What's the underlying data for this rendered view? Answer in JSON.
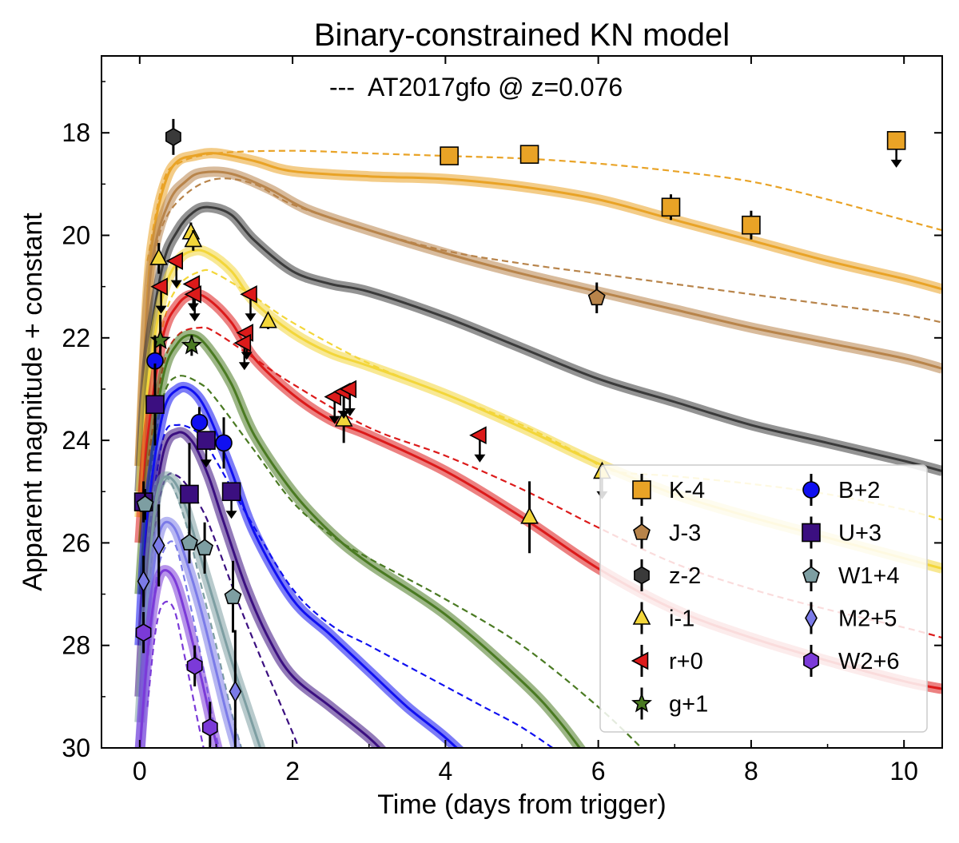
{
  "chart_data": {
    "type": "line",
    "title": "Binary-constrained KN model",
    "xlabel": "Time (days from trigger)",
    "ylabel": "Apparent magnitude + constant",
    "xlim": [
      -0.5,
      10.5
    ],
    "ylim": [
      30,
      16.5
    ],
    "y_inverted": true,
    "grid": false,
    "x_ticks": [
      0,
      2,
      4,
      6,
      8,
      10
    ],
    "y_ticks": [
      18,
      20,
      22,
      24,
      26,
      28,
      30
    ],
    "annotation": {
      "label": "---  AT2017gfo @ z=0.076",
      "line_style": "dashed"
    },
    "legend_position": "lower-right",
    "legend": [
      {
        "label": "K-4",
        "color": "#e9a326",
        "marker": "square"
      },
      {
        "label": "J-3",
        "color": "#b8844a",
        "marker": "pentagon"
      },
      {
        "label": "z-2",
        "color": "#3a3a3a",
        "marker": "hexagon"
      },
      {
        "label": "i-1",
        "color": "#f3d63a",
        "marker": "triangle-up"
      },
      {
        "label": "r+0",
        "color": "#dc1a1a",
        "marker": "triangle-left"
      },
      {
        "label": "g+1",
        "color": "#4a7a22",
        "marker": "star"
      },
      {
        "label": "B+2",
        "color": "#1010f0",
        "marker": "circle"
      },
      {
        "label": "U+3",
        "color": "#3b0f80",
        "marker": "square"
      },
      {
        "label": "W1+4",
        "color": "#7d9ea2",
        "marker": "pentagon"
      },
      {
        "label": "M2+5",
        "color": "#7b7be8",
        "marker": "diamond"
      },
      {
        "label": "W2+6",
        "color": "#7b3ad8",
        "marker": "hexagon"
      }
    ],
    "series": [
      {
        "name": "K-4",
        "color": "#e9a326",
        "model": {
          "x": [
            0,
            0.1,
            0.2,
            0.35,
            0.5,
            0.7,
            1.0,
            1.5,
            2.0,
            3.0,
            4.0,
            5.0,
            6.0,
            7.0,
            8.0,
            9.0,
            10.0,
            10.5
          ],
          "y": [
            24.5,
            21.2,
            19.8,
            18.9,
            18.55,
            18.45,
            18.4,
            18.55,
            18.75,
            18.85,
            18.9,
            19.05,
            19.3,
            19.7,
            20.1,
            20.5,
            20.85,
            21.05
          ]
        },
        "reference": {
          "x": [
            0.1,
            0.3,
            0.5,
            1.0,
            2.0,
            3.0,
            4.0,
            5.0,
            6.0,
            7.0,
            8.0,
            9.0,
            10.0,
            10.5
          ],
          "y": [
            20.5,
            19.0,
            18.6,
            18.4,
            18.35,
            18.4,
            18.45,
            18.5,
            18.6,
            18.75,
            18.95,
            19.3,
            19.7,
            19.9
          ]
        },
        "points": [
          {
            "x": 4.05,
            "y": 18.45,
            "err": 0.1
          },
          {
            "x": 5.1,
            "y": 18.42,
            "err": 0.1
          },
          {
            "x": 6.95,
            "y": 19.45,
            "err": 0.25
          },
          {
            "x": 8.0,
            "y": 19.8,
            "err": 0.28
          },
          {
            "x": 9.9,
            "y": 18.15,
            "upper_limit": true
          }
        ]
      },
      {
        "name": "J-3",
        "color": "#b8844a",
        "model": {
          "x": [
            0,
            0.1,
            0.2,
            0.4,
            0.6,
            0.8,
            1.2,
            1.7,
            2.2,
            3.0,
            4.0,
            5.0,
            6.0,
            7.0,
            8.0,
            9.0,
            10.0,
            10.5
          ],
          "y": [
            24.5,
            21.5,
            20.2,
            19.3,
            18.95,
            18.78,
            18.8,
            19.1,
            19.5,
            19.9,
            20.35,
            20.75,
            21.1,
            21.45,
            21.8,
            22.1,
            22.4,
            22.6
          ]
        },
        "reference": {
          "x": [
            0.1,
            0.3,
            0.6,
            1.0,
            1.5,
            2.0,
            3.0,
            4.0,
            5.0,
            6.0,
            7.0,
            8.0,
            9.0,
            10.0,
            10.5
          ],
          "y": [
            21.0,
            19.8,
            19.2,
            18.9,
            19.0,
            19.4,
            19.9,
            20.3,
            20.55,
            20.75,
            20.95,
            21.15,
            21.35,
            21.55,
            21.7
          ]
        },
        "points": [
          {
            "x": 5.98,
            "y": 21.22,
            "err": 0.3
          }
        ]
      },
      {
        "name": "z-2",
        "color": "#3a3a3a",
        "model": {
          "x": [
            0,
            0.1,
            0.3,
            0.5,
            0.7,
            0.9,
            1.2,
            1.5,
            2.0,
            2.5,
            3.0,
            4.0,
            5.0,
            6.0,
            7.0,
            8.0,
            9.0,
            10.0,
            10.5
          ],
          "y": [
            25,
            22.5,
            20.6,
            19.9,
            19.55,
            19.45,
            19.6,
            20.1,
            20.7,
            20.95,
            21.1,
            21.6,
            22.2,
            22.8,
            23.25,
            23.7,
            24.05,
            24.4,
            24.6
          ]
        },
        "points": [
          {
            "x": 0.44,
            "y": 18.08,
            "err": 0.35
          }
        ]
      },
      {
        "name": "i-1",
        "color": "#f3d63a",
        "model": {
          "x": [
            0,
            0.1,
            0.3,
            0.5,
            0.7,
            0.9,
            1.2,
            1.5,
            2.0,
            2.5,
            3.0,
            4.0,
            5.0,
            6.0,
            7.0,
            8.0,
            9.0,
            10.0,
            10.5
          ],
          "y": [
            25.5,
            23.0,
            21.2,
            20.5,
            20.3,
            20.35,
            20.7,
            21.3,
            21.9,
            22.3,
            22.55,
            23.1,
            23.75,
            24.45,
            25.05,
            25.5,
            25.9,
            26.3,
            26.5
          ]
        },
        "reference": {
          "x": [
            0.1,
            0.3,
            0.5,
            0.8,
            1.0,
            1.5,
            2.0,
            3.0,
            4.0,
            5.0,
            5.8,
            6.2,
            7.0,
            8.0,
            9.0,
            10.0,
            10.5
          ],
          "y": [
            24.0,
            21.8,
            21.0,
            20.7,
            20.75,
            21.2,
            21.7,
            22.5,
            23.1,
            23.7,
            24.3,
            24.6,
            24.7,
            24.85,
            25.05,
            25.35,
            25.55
          ]
        },
        "points": [
          {
            "x": 0.25,
            "y": 20.45,
            "err": 0.3
          },
          {
            "x": 0.67,
            "y": 19.95,
            "err": 0.2
          },
          {
            "x": 0.7,
            "y": 20.1,
            "err": 0.2
          },
          {
            "x": 1.68,
            "y": 21.68,
            "err": 0.15
          },
          {
            "x": 2.67,
            "y": 23.6,
            "err": 0.45
          },
          {
            "x": 6.05,
            "y": 24.62,
            "upper_limit": true
          },
          {
            "x": 5.1,
            "y": 25.5,
            "err": 0.7
          }
        ]
      },
      {
        "name": "r+0",
        "color": "#dc1a1a",
        "model": {
          "x": [
            0,
            0.1,
            0.3,
            0.5,
            0.7,
            0.9,
            1.2,
            1.5,
            2.0,
            2.5,
            3.0,
            4.0,
            5.0,
            6.0,
            7.0,
            8.0,
            9.0,
            10.0,
            10.5
          ],
          "y": [
            26,
            24.0,
            22.0,
            21.35,
            21.15,
            21.25,
            21.7,
            22.4,
            23.1,
            23.6,
            23.9,
            24.6,
            25.5,
            26.5,
            27.3,
            27.85,
            28.3,
            28.7,
            28.85
          ]
        },
        "reference": {
          "x": [
            0.1,
            0.3,
            0.5,
            0.8,
            1.0,
            1.5,
            2.0,
            3.0,
            4.0,
            5.0,
            6.0,
            7.0,
            8.0,
            9.0,
            10.0,
            10.5
          ],
          "y": [
            24.5,
            22.6,
            21.95,
            21.8,
            21.9,
            22.4,
            22.9,
            23.75,
            24.3,
            24.95,
            25.7,
            26.4,
            26.9,
            27.3,
            27.65,
            27.85
          ]
        },
        "points": [
          {
            "x": 0.28,
            "y": 21.0,
            "upper_limit": true
          },
          {
            "x": 0.48,
            "y": 20.5,
            "upper_limit": true
          },
          {
            "x": 0.7,
            "y": 20.95,
            "upper_limit": true
          },
          {
            "x": 0.72,
            "y": 21.15,
            "upper_limit": true
          },
          {
            "x": 1.45,
            "y": 21.15,
            "upper_limit": true
          },
          {
            "x": 1.4,
            "y": 21.9,
            "upper_limit": true
          },
          {
            "x": 1.37,
            "y": 22.1,
            "upper_limit": true
          },
          {
            "x": 2.55,
            "y": 23.15,
            "upper_limit": true
          },
          {
            "x": 2.67,
            "y": 23.05,
            "upper_limit": true
          },
          {
            "x": 2.75,
            "y": 23.0,
            "upper_limit": true
          },
          {
            "x": 4.45,
            "y": 23.9,
            "upper_limit": true
          }
        ]
      },
      {
        "name": "g+1",
        "color": "#4a7a22",
        "model": {
          "x": [
            0,
            0.1,
            0.3,
            0.5,
            0.7,
            0.9,
            1.2,
            1.5,
            2.0,
            2.5,
            3.0,
            4.0,
            5.0,
            5.5,
            6.0
          ],
          "y": [
            27,
            25.0,
            22.8,
            22.1,
            21.95,
            22.2,
            22.9,
            23.9,
            25.0,
            25.8,
            26.4,
            27.4,
            28.7,
            29.5,
            30.5
          ]
        },
        "reference": {
          "x": [
            0.1,
            0.3,
            0.5,
            0.8,
            1.0,
            1.5,
            2.0,
            2.5,
            3.0,
            4.0,
            5.0,
            6.0,
            6.7
          ],
          "y": [
            25.0,
            23.2,
            22.75,
            22.9,
            23.2,
            24.2,
            25.2,
            25.85,
            26.3,
            27.1,
            28.0,
            29.2,
            30.2
          ]
        },
        "points": [
          {
            "x": 0.27,
            "y": 22.05,
            "err": 0.5
          },
          {
            "x": 0.68,
            "y": 22.15,
            "err": 0.2
          }
        ]
      },
      {
        "name": "B+2",
        "color": "#1010f0",
        "model": {
          "x": [
            0,
            0.1,
            0.3,
            0.5,
            0.7,
            0.9,
            1.2,
            1.5,
            2.0,
            2.5,
            3.0,
            3.5,
            4.0,
            4.5
          ],
          "y": [
            28,
            25.5,
            23.5,
            23.0,
            23.05,
            23.5,
            24.6,
            25.8,
            27.1,
            27.8,
            28.5,
            29.2,
            29.8,
            30.5
          ]
        },
        "reference": {
          "x": [
            0.1,
            0.3,
            0.5,
            0.8,
            1.0,
            1.5,
            2.0,
            2.5,
            3.0,
            3.5,
            4.0,
            4.5,
            5.0,
            5.5
          ],
          "y": [
            26.0,
            24.0,
            23.7,
            23.9,
            24.4,
            25.7,
            26.9,
            27.6,
            28.0,
            28.4,
            28.8,
            29.2,
            29.6,
            30.1
          ]
        },
        "points": [
          {
            "x": 0.2,
            "y": 22.45,
            "err": 0.5
          },
          {
            "x": 0.78,
            "y": 23.65,
            "err": 0.3
          },
          {
            "x": 1.1,
            "y": 24.05,
            "err": 0.5
          }
        ]
      },
      {
        "name": "U+3",
        "color": "#3b0f80",
        "model": {
          "x": [
            0,
            0.1,
            0.3,
            0.5,
            0.7,
            0.9,
            1.1,
            1.4,
            1.7,
            2.0,
            2.5,
            3.0,
            3.2
          ],
          "y": [
            29,
            26.5,
            24.3,
            23.85,
            24.05,
            24.7,
            25.6,
            26.9,
            27.9,
            28.6,
            29.2,
            29.8,
            30.1
          ]
        },
        "reference": {
          "x": [
            0.1,
            0.3,
            0.5,
            0.8,
            1.0,
            1.3,
            1.6,
            2.0,
            2.1
          ],
          "y": [
            26.7,
            24.9,
            24.7,
            25.3,
            26.0,
            27.2,
            28.3,
            29.7,
            30.1
          ]
        },
        "points": [
          {
            "x": 0.05,
            "y": 25.2,
            "err": 0.4
          },
          {
            "x": 0.2,
            "y": 23.3,
            "err": 0.8
          },
          {
            "x": 0.65,
            "y": 25.05,
            "err": 1.0
          },
          {
            "x": 0.87,
            "y": 24.0,
            "upper_limit": true
          },
          {
            "x": 1.2,
            "y": 25.0,
            "upper_limit": true
          }
        ]
      },
      {
        "name": "W1+4",
        "color": "#7d9ea2",
        "model": {
          "x": [
            0,
            0.1,
            0.2,
            0.3,
            0.45,
            0.6,
            0.8,
            1.0,
            1.2,
            1.4,
            1.6
          ],
          "y": [
            29.5,
            27.0,
            25.3,
            24.75,
            24.8,
            25.3,
            26.3,
            27.3,
            28.3,
            29.2,
            30.1
          ]
        },
        "reference": {
          "x": [
            0.1,
            0.2,
            0.3,
            0.4,
            0.6,
            0.8,
            1.0,
            1.2,
            1.35
          ],
          "y": [
            27.2,
            25.6,
            24.9,
            24.8,
            25.6,
            26.8,
            28.0,
            29.3,
            30.1
          ]
        },
        "points": [
          {
            "x": 0.07,
            "y": 25.25,
            "err": 0.3
          },
          {
            "x": 0.65,
            "y": 26.0,
            "err": 0.4
          },
          {
            "x": 0.85,
            "y": 26.1,
            "err": 0.5
          },
          {
            "x": 1.22,
            "y": 27.05,
            "err": 0.7
          }
        ]
      },
      {
        "name": "M2+5",
        "color": "#7b7be8",
        "model": {
          "x": [
            0,
            0.1,
            0.2,
            0.3,
            0.45,
            0.6,
            0.8,
            1.0,
            1.15,
            1.3
          ],
          "y": [
            30.1,
            27.8,
            26.3,
            25.65,
            25.7,
            26.3,
            27.3,
            28.5,
            29.4,
            30.2
          ]
        },
        "reference": {
          "x": [
            0.1,
            0.2,
            0.3,
            0.45,
            0.6,
            0.8,
            0.95,
            1.05
          ],
          "y": [
            28.4,
            26.9,
            26.2,
            26.0,
            26.8,
            28.2,
            29.4,
            30.1
          ]
        },
        "points": [
          {
            "x": 0.05,
            "y": 26.75,
            "err": 0.5
          },
          {
            "x": 0.25,
            "y": 26.05,
            "err": 0.8
          },
          {
            "x": 1.25,
            "y": 28.9,
            "err": 1.2
          }
        ]
      },
      {
        "name": "W2+6",
        "color": "#7b3ad8",
        "model": {
          "x": [
            0,
            0.1,
            0.2,
            0.3,
            0.45,
            0.6,
            0.8,
            0.95,
            1.05
          ],
          "y": [
            30.1,
            28.2,
            27.0,
            26.55,
            26.7,
            27.4,
            28.6,
            29.6,
            30.2
          ]
        },
        "reference": {
          "x": [
            0.1,
            0.2,
            0.3,
            0.45,
            0.6,
            0.75,
            0.85
          ],
          "y": [
            29.2,
            27.8,
            27.2,
            27.3,
            28.3,
            29.4,
            30.1
          ]
        },
        "points": [
          {
            "x": 0.05,
            "y": 27.75,
            "err": 0.4
          },
          {
            "x": 0.72,
            "y": 28.4,
            "err": 0.4
          },
          {
            "x": 0.92,
            "y": 29.6,
            "err": 0.5
          }
        ]
      }
    ]
  }
}
